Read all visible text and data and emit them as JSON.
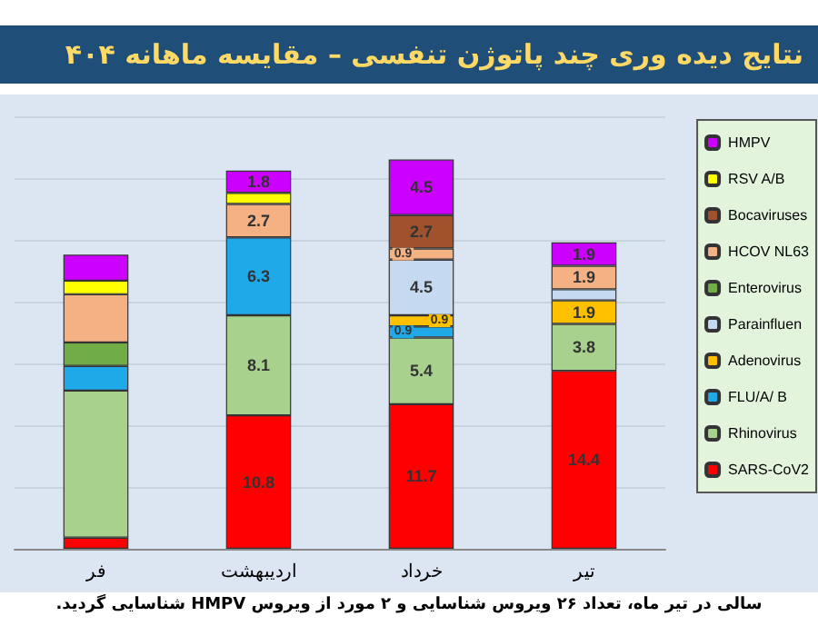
{
  "chart_data": {
    "type": "bar",
    "stacked": true,
    "title": "نتایج دیده وری چند پاتوژن تنفسی – مقایسه ماهانه ۴۰۴",
    "categories": [
      "فر",
      "اردیبهشت",
      "خرداد",
      "تیر"
    ],
    "series": [
      {
        "name": "SARS-CoV2",
        "color": "#ff0000",
        "values": [
          0.9,
          10.8,
          11.7,
          14.4
        ],
        "value_labels": [
          null,
          "10.8",
          "11.7",
          "14.4"
        ]
      },
      {
        "name": "Rhinovirus",
        "color": "#a9d18e",
        "values": [
          11.9,
          8.1,
          5.4,
          3.8
        ],
        "value_labels": [
          null,
          "8.1",
          "5.4",
          "3.8"
        ]
      },
      {
        "name": "FLU/A/ B",
        "color": "#1fa9e8",
        "values": [
          2.0,
          6.3,
          0.9,
          null
        ],
        "value_labels": [
          null,
          "6.3",
          "0.9",
          null
        ]
      },
      {
        "name": "Adenovirus",
        "color": "#ffc000",
        "values": [
          null,
          null,
          0.9,
          1.9
        ],
        "value_labels": [
          null,
          null,
          "0.9",
          "1.9"
        ]
      },
      {
        "name": "Parainfluen",
        "color": "#c5d9f1",
        "values": [
          null,
          null,
          4.5,
          0.9
        ],
        "value_labels": [
          null,
          null,
          "4.5",
          null
        ]
      },
      {
        "name": "Enterovirus",
        "color": "#70ad47",
        "values": [
          1.9,
          null,
          null,
          null
        ],
        "value_labels": [
          null,
          null,
          null,
          null
        ]
      },
      {
        "name": "HCOV NL63",
        "color": "#f4b183",
        "values": [
          3.9,
          2.7,
          0.9,
          1.9
        ],
        "value_labels": [
          null,
          "2.7",
          "0.9",
          "1.9"
        ]
      },
      {
        "name": "Bocaviruses",
        "color": "#a0522d",
        "values": [
          null,
          null,
          2.7,
          null
        ],
        "value_labels": [
          null,
          null,
          "2.7",
          null
        ]
      },
      {
        "name": "RSV A/B",
        "color": "#ffff00",
        "values": [
          1.1,
          0.9,
          null,
          null
        ],
        "value_labels": [
          null,
          null,
          null,
          null
        ]
      },
      {
        "name": "HMPV",
        "color": "#cc00ff",
        "values": [
          2.1,
          1.8,
          4.5,
          1.9
        ],
        "value_labels": [
          null,
          "1.8",
          "4.5",
          "1.9"
        ]
      }
    ],
    "ylim": [
      0,
      35
    ],
    "yticks": [
      {
        "value": 0,
        "label": null
      },
      {
        "value": 5,
        "label": null
      },
      {
        "value": 10,
        "label": null
      },
      {
        "value": 15,
        "label": null
      },
      {
        "value": 20,
        "label": null
      },
      {
        "value": 25,
        "label": null
      },
      {
        "value": 30,
        "label": null
      },
      {
        "value": 35,
        "label": null
      }
    ],
    "tick_labels": "x",
    "grid": "y",
    "legend": "right",
    "annotations": [
      "سالی در تیر ماه، تعداد ۲۶ ویروس شناسایی و ۲ مورد از ویروس HMPV شناسایی گردید."
    ]
  }
}
